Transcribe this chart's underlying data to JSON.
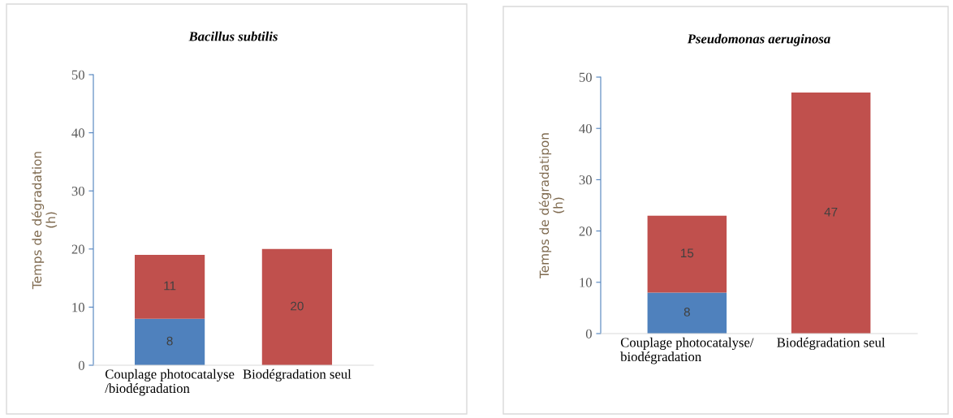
{
  "chart_data": [
    {
      "type": "bar",
      "title": "Bacillus subtilis",
      "ylabel": "Temps de dégradation\n(h)",
      "categories": [
        "Couplage photocatalyse\n/biodégradation",
        "Biodégradation seul"
      ],
      "stacked": true,
      "data_labels": true,
      "ylim": [
        0,
        50
      ],
      "yticks": [
        0,
        10,
        20,
        30,
        40,
        50
      ],
      "series": [
        {
          "color": "#4f81bd",
          "values": [
            8,
            null
          ]
        },
        {
          "color": "#c0504d",
          "values": [
            11,
            20
          ]
        }
      ]
    },
    {
      "type": "bar",
      "title": "Pseudomonas aeruginosa",
      "ylabel": "Temps de dégradatipon\n(h)",
      "categories": [
        "Couplage photocatalyse/\nbiodégradation",
        "Biodégradation seul"
      ],
      "stacked": true,
      "data_labels": true,
      "ylim": [
        0,
        50
      ],
      "yticks": [
        0,
        10,
        20,
        30,
        40,
        50
      ],
      "series": [
        {
          "color": "#4f81bd",
          "values": [
            8,
            null
          ]
        },
        {
          "color": "#c0504d",
          "values": [
            15,
            47
          ]
        }
      ]
    }
  ]
}
